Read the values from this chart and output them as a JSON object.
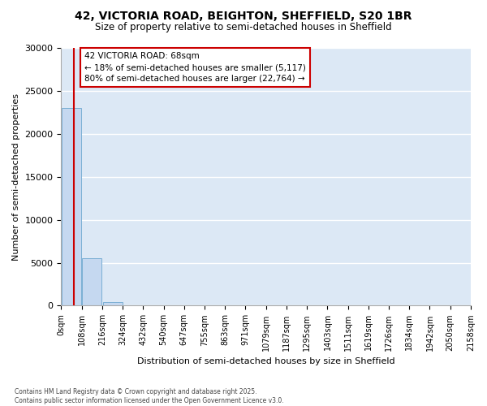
{
  "title_line1": "42, VICTORIA ROAD, BEIGHTON, SHEFFIELD, S20 1BR",
  "title_line2": "Size of property relative to semi-detached houses in Sheffield",
  "xlabel": "Distribution of semi-detached houses by size in Sheffield",
  "ylabel": "Number of semi-detached properties",
  "annotation_line1": "42 VICTORIA ROAD: 68sqm",
  "annotation_line2": "← 18% of semi-detached houses are smaller (5,117)",
  "annotation_line3": "80% of semi-detached houses are larger (22,764) →",
  "bin_edges": [
    0,
    108,
    216,
    324,
    432,
    540,
    647,
    755,
    863,
    971,
    1079,
    1187,
    1295,
    1403,
    1511,
    1619,
    1726,
    1834,
    1942,
    2050,
    2158
  ],
  "bin_labels": [
    "0sqm",
    "108sqm",
    "216sqm",
    "324sqm",
    "432sqm",
    "540sqm",
    "647sqm",
    "755sqm",
    "863sqm",
    "971sqm",
    "1079sqm",
    "1187sqm",
    "1295sqm",
    "1403sqm",
    "1511sqm",
    "1619sqm",
    "1726sqm",
    "1834sqm",
    "1942sqm",
    "2050sqm",
    "2158sqm"
  ],
  "bar_heights": [
    23000,
    5500,
    400,
    50,
    10,
    3,
    1,
    0,
    0,
    0,
    0,
    0,
    0,
    0,
    0,
    0,
    0,
    0,
    0,
    0
  ],
  "bar_color": "#c5d8f0",
  "bar_edge_color": "#7bafd4",
  "vline_x": 68,
  "vline_color": "#cc0000",
  "ylim": [
    0,
    30000
  ],
  "yticks": [
    0,
    5000,
    10000,
    15000,
    20000,
    25000,
    30000
  ],
  "plot_bg_color": "#dce8f5",
  "fig_bg_color": "#ffffff",
  "grid_color": "#ffffff",
  "annotation_box_facecolor": "#ffffff",
  "annotation_box_edgecolor": "#cc0000",
  "footer_line1": "Contains HM Land Registry data © Crown copyright and database right 2025.",
  "footer_line2": "Contains public sector information licensed under the Open Government Licence v3.0."
}
